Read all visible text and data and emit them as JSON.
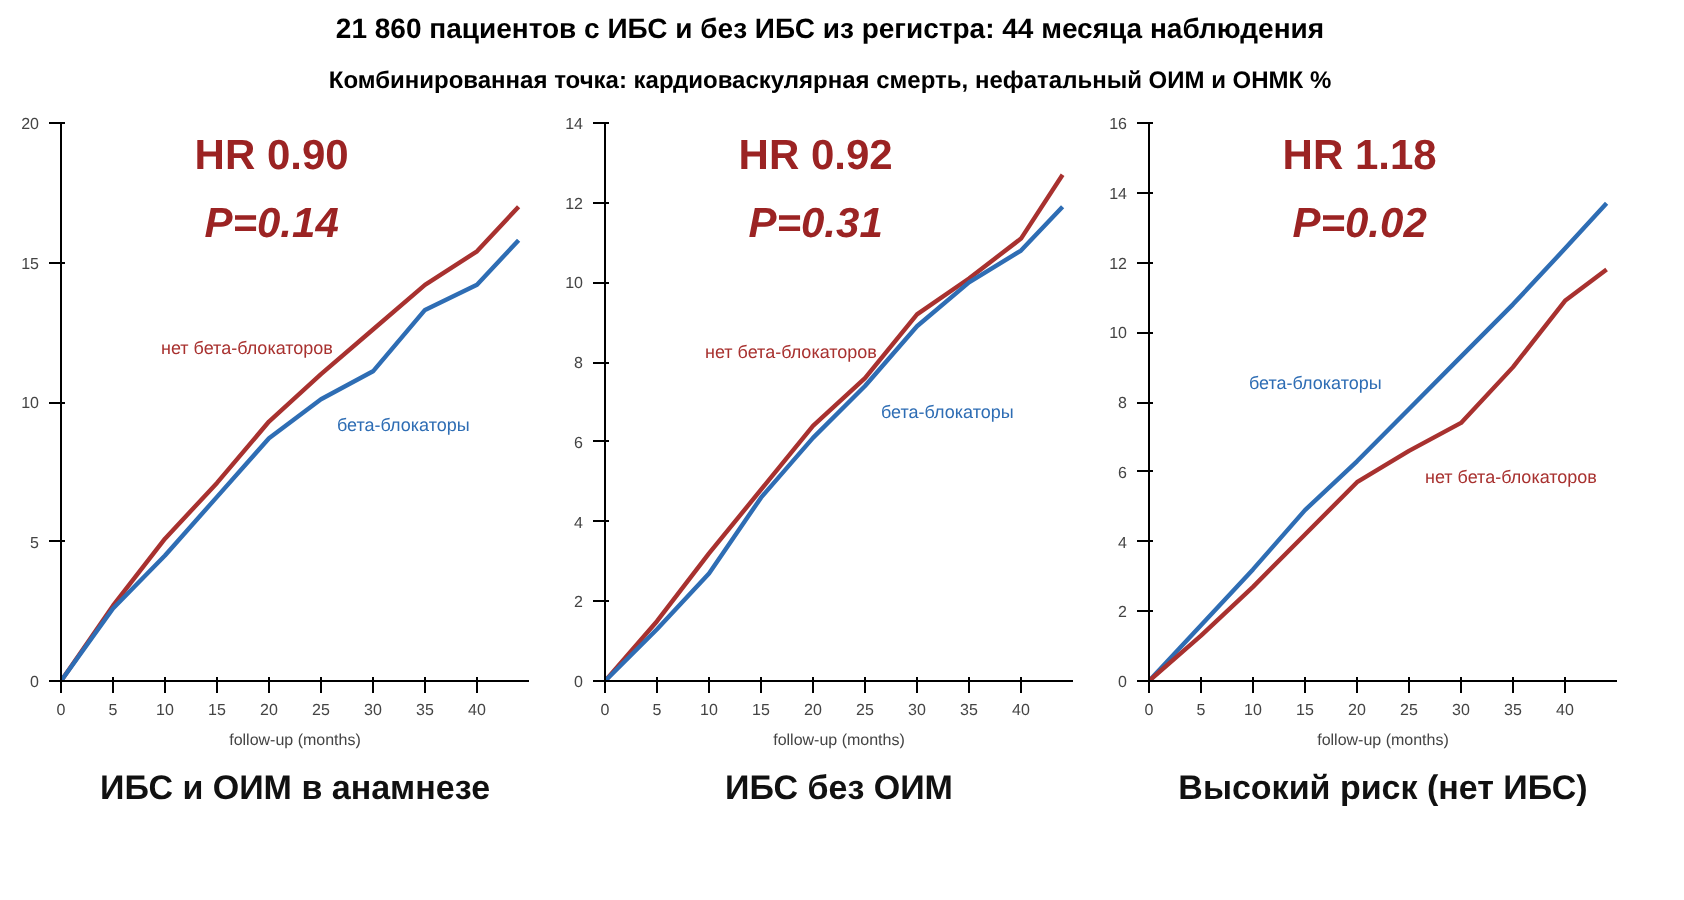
{
  "chart_data": [
    {
      "type": "line",
      "title": "21 860 пациентов с ИБС и без ИБС из регистра: 44 месяца наблюдения",
      "subtitle": "Комбинированная точка: кардиоваскулярная смерть, нефатальный ОИМ и ОНМК %",
      "xlabel": "follow-up (months)",
      "x": [
        0,
        5,
        10,
        15,
        20,
        25,
        30,
        35,
        40,
        44
      ],
      "xlim": [
        0,
        45
      ],
      "xticks": [
        0,
        5,
        10,
        15,
        20,
        25,
        30,
        35,
        40
      ],
      "ylim": [
        0,
        20
      ],
      "yticks": [
        0,
        5,
        10,
        15,
        20
      ],
      "grid": false,
      "legend": false,
      "series": [
        {
          "name": "нет бета-блокаторов",
          "color": "#a8312f",
          "values": [
            0,
            2.7,
            5.1,
            7.1,
            9.3,
            11.0,
            12.6,
            14.2,
            15.4,
            17.0
          ]
        },
        {
          "name": "бета-блокаторы",
          "color": "#2e6db4",
          "values": [
            0,
            2.6,
            4.5,
            6.6,
            8.7,
            10.1,
            11.1,
            13.3,
            14.2,
            15.8
          ]
        }
      ],
      "annotations": [
        "HR 0.90",
        "P=0.14",
        "ИБС и ОИМ в анамнезе"
      ]
    },
    {
      "type": "line",
      "xlabel": "follow-up (months)",
      "x": [
        0,
        5,
        10,
        15,
        20,
        25,
        30,
        35,
        40,
        44
      ],
      "xlim": [
        0,
        45
      ],
      "xticks": [
        0,
        5,
        10,
        15,
        20,
        25,
        30,
        35,
        40
      ],
      "ylim": [
        0,
        14
      ],
      "yticks": [
        0,
        2,
        4,
        6,
        8,
        10,
        12,
        14
      ],
      "grid": false,
      "legend": false,
      "series": [
        {
          "name": "нет бета-блокаторов",
          "color": "#a8312f",
          "values": [
            0,
            1.5,
            3.2,
            4.8,
            6.4,
            7.6,
            9.2,
            10.1,
            11.1,
            12.7
          ]
        },
        {
          "name": "бета-блокаторы",
          "color": "#2e6db4",
          "values": [
            0,
            1.3,
            2.7,
            4.6,
            6.1,
            7.4,
            8.9,
            10.0,
            10.8,
            11.9
          ]
        }
      ],
      "annotations": [
        "HR 0.92",
        "P=0.31",
        "ИБС без ОИМ"
      ]
    },
    {
      "type": "line",
      "xlabel": "follow-up (months)",
      "x": [
        0,
        5,
        10,
        15,
        20,
        25,
        30,
        35,
        40,
        44
      ],
      "xlim": [
        0,
        45
      ],
      "xticks": [
        0,
        5,
        10,
        15,
        20,
        25,
        30,
        35,
        40
      ],
      "ylim": [
        0,
        16
      ],
      "yticks": [
        0,
        2,
        4,
        6,
        8,
        10,
        12,
        14,
        16
      ],
      "grid": false,
      "legend": false,
      "series": [
        {
          "name": "бета-блокаторы",
          "color": "#2e6db4",
          "values": [
            0,
            1.6,
            3.2,
            4.9,
            6.3,
            7.8,
            9.3,
            10.8,
            12.4,
            13.7
          ]
        },
        {
          "name": "нет бета-блокаторов",
          "color": "#a8312f",
          "values": [
            0,
            1.3,
            2.7,
            4.2,
            5.7,
            6.6,
            7.4,
            9.0,
            10.9,
            11.8
          ]
        }
      ],
      "annotations": [
        "HR 1.18",
        "P=0.02",
        "Высокий риск (нет ИБС)"
      ]
    }
  ]
}
